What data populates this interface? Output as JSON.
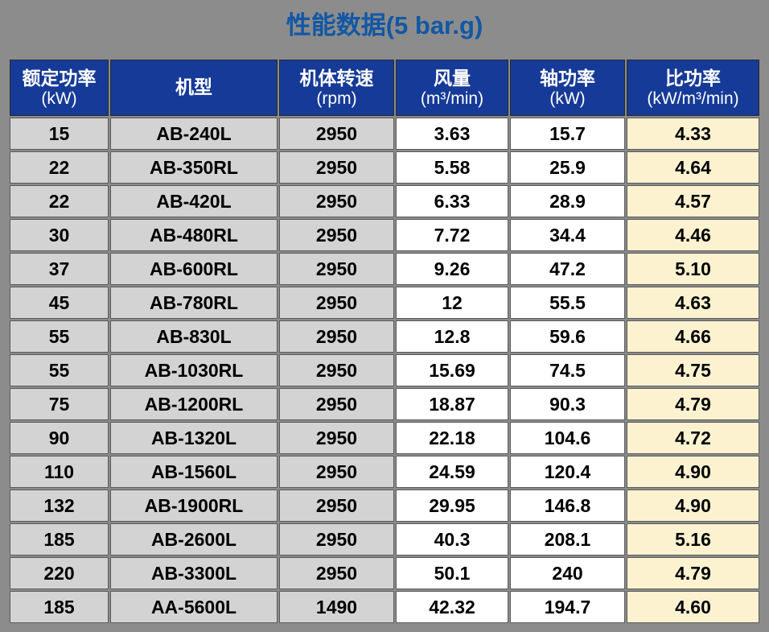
{
  "page": {
    "title": "性能数据(5 bar.g)"
  },
  "colors": {
    "page_bg": "#8c8c8c",
    "title_text": "#1257a5",
    "header_bg": "#163a97",
    "header_text": "#ffffff",
    "gray_column_bg": "#d3d3d3",
    "white_column_bg": "#ffffff",
    "specific_power_column_bg": "#fcf2d0",
    "grid_border": "#5a5a5a"
  },
  "chart_data": {
    "type": "table",
    "title": "性能数据(5 bar.g)",
    "columns": [
      {
        "label": "额定功率",
        "unit": "(kW)"
      },
      {
        "label": "机型",
        "unit": ""
      },
      {
        "label": "机体转速",
        "unit": "(rpm)"
      },
      {
        "label": "风量",
        "unit": "(m³/min)"
      },
      {
        "label": "轴功率",
        "unit": "(kW)"
      },
      {
        "label": "比功率",
        "unit": "(kW/m³/min)"
      }
    ],
    "rows": [
      [
        "15",
        "AB-240L",
        "2950",
        "3.63",
        "15.7",
        "4.33"
      ],
      [
        "22",
        "AB-350RL",
        "2950",
        "5.58",
        "25.9",
        "4.64"
      ],
      [
        "22",
        "AB-420L",
        "2950",
        "6.33",
        "28.9",
        "4.57"
      ],
      [
        "30",
        "AB-480RL",
        "2950",
        "7.72",
        "34.4",
        "4.46"
      ],
      [
        "37",
        "AB-600RL",
        "2950",
        "9.26",
        "47.2",
        "5.10"
      ],
      [
        "45",
        "AB-780RL",
        "2950",
        "12",
        "55.5",
        "4.63"
      ],
      [
        "55",
        "AB-830L",
        "2950",
        "12.8",
        "59.6",
        "4.66"
      ],
      [
        "55",
        "AB-1030RL",
        "2950",
        "15.69",
        "74.5",
        "4.75"
      ],
      [
        "75",
        "AB-1200RL",
        "2950",
        "18.87",
        "90.3",
        "4.79"
      ],
      [
        "90",
        "AB-1320L",
        "2950",
        "22.18",
        "104.6",
        "4.72"
      ],
      [
        "110",
        "AB-1560L",
        "2950",
        "24.59",
        "120.4",
        "4.90"
      ],
      [
        "132",
        "AB-1900RL",
        "2950",
        "29.95",
        "146.8",
        "4.90"
      ],
      [
        "185",
        "AB-2600L",
        "2950",
        "40.3",
        "208.1",
        "5.16"
      ],
      [
        "220",
        "AB-3300L",
        "2950",
        "50.1",
        "240",
        "4.79"
      ],
      [
        "185",
        "AA-5600L",
        "1490",
        "42.32",
        "194.7",
        "4.60"
      ]
    ]
  }
}
